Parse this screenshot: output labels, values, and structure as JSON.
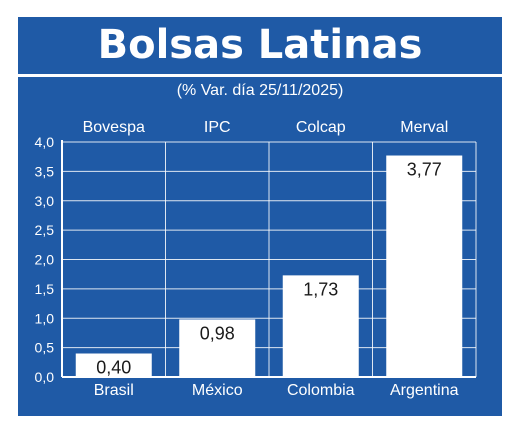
{
  "header": {
    "title": "Bolsas Latinas",
    "subtitle": "(% Var. día 25/11/2025)"
  },
  "colors": {
    "panel": "#1f5aa6",
    "bar": "#ffffff",
    "text": "#ffffff",
    "value_text": "#1a1a1a"
  },
  "chart_data": {
    "type": "bar",
    "title": "Bolsas Latinas",
    "subtitle": "(% Var. día 25/11/2025)",
    "index_labels": [
      "Bovespa",
      "IPC",
      "Colcap",
      "Merval"
    ],
    "categories": [
      "Brasil",
      "México",
      "Colombia",
      "Argentina"
    ],
    "values": [
      0.4,
      0.98,
      1.73,
      3.77
    ],
    "value_labels": [
      "0,40",
      "0,98",
      "1,73",
      "3,77"
    ],
    "ylim": [
      0,
      4
    ],
    "yticks": [
      "0,0",
      "0,5",
      "1,0",
      "1,5",
      "2,0",
      "2,5",
      "3,0",
      "3,5",
      "4,0"
    ],
    "xlabel": "",
    "ylabel": "",
    "grid": true,
    "legend": "none"
  }
}
